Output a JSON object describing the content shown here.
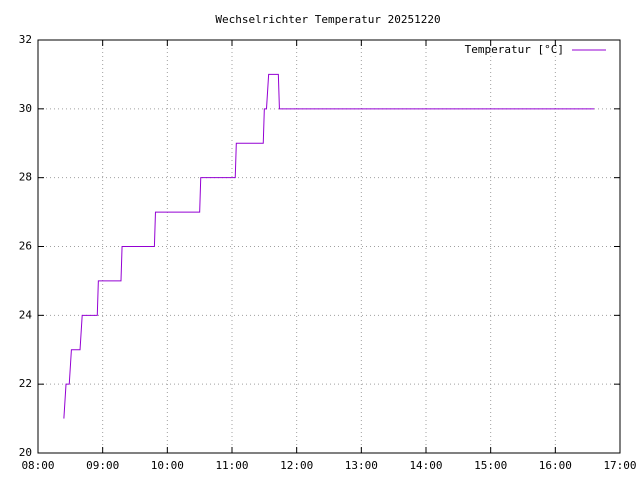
{
  "chart_data": {
    "type": "line",
    "title": "Wechselrichter Temperatur 20251220",
    "x": [
      "08:24",
      "08:26",
      "08:29",
      "08:31",
      "08:39",
      "08:41",
      "08:55",
      "08:56",
      "09:17",
      "09:18",
      "09:48",
      "09:49",
      "10:30",
      "10:31",
      "11:03",
      "11:04",
      "11:29",
      "11:30",
      "11:32",
      "11:34",
      "11:43",
      "11:44",
      "11:45",
      "16:36"
    ],
    "series": [
      {
        "name": "Temperatur [°C]",
        "color": "#9400d3",
        "values": [
          21,
          22,
          22,
          23,
          23,
          24,
          24,
          25,
          25,
          26,
          26,
          27,
          27,
          28,
          28,
          29,
          29,
          30,
          30,
          31,
          31,
          30,
          30,
          30
        ]
      }
    ],
    "xlim": [
      "08:00",
      "17:00"
    ],
    "xticks": [
      "08:00",
      "09:00",
      "10:00",
      "11:00",
      "12:00",
      "13:00",
      "14:00",
      "15:00",
      "16:00",
      "17:00"
    ],
    "ylim": [
      20,
      32
    ],
    "yticks": [
      20,
      22,
      24,
      26,
      28,
      30,
      32
    ],
    "grid": true,
    "legend": "top-right"
  }
}
